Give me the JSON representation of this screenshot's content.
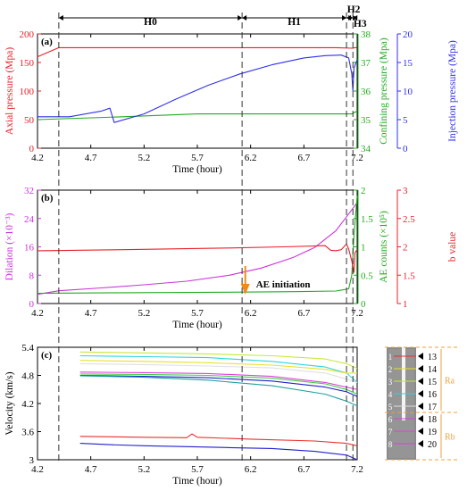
{
  "phases": [
    "H0",
    "H1",
    "H2",
    "H3"
  ],
  "colors": {
    "axial": "#e8202a",
    "confining": "#22aa22",
    "injection": "#3030e8",
    "dilation": "#cc33dd",
    "ae": "#22aa22",
    "bvalue": "#e8202a",
    "arrow": "#f28a1a",
    "sensor_dim": "#f0a040"
  },
  "chart_data": [
    {
      "panel": "(a)",
      "type": "line",
      "xlabel": "Time (hour)",
      "xlim": [
        4.2,
        7.2
      ],
      "xticks": [
        4.2,
        4.7,
        5.2,
        5.7,
        6.2,
        6.7,
        7.2
      ],
      "y_left": {
        "label": "Axial pressure (Mpa)",
        "lim": [
          0,
          200
        ],
        "ticks": [
          0,
          50,
          100,
          150,
          200
        ]
      },
      "y_right1": {
        "label": "Confining pressure (Mpa)",
        "lim": [
          34,
          38
        ],
        "ticks": [
          34,
          35,
          36,
          37,
          38
        ]
      },
      "y_right2": {
        "label": "Injection pressure (Mpa)",
        "lim": [
          0,
          20
        ],
        "ticks": [
          0,
          5,
          10,
          15,
          20
        ]
      },
      "series": [
        {
          "key": "axial",
          "axis": "left",
          "x": [
            4.2,
            4.4,
            4.5,
            7.0,
            7.16,
            7.18,
            7.2
          ],
          "y": [
            160,
            176,
            176,
            176,
            175,
            176,
            176
          ]
        },
        {
          "key": "confining",
          "axis": "right1",
          "x": [
            4.2,
            5.0,
            5.7,
            6.5,
            7.15,
            7.2
          ],
          "y": [
            35.0,
            35.1,
            35.2,
            35.2,
            35.2,
            35.3
          ]
        },
        {
          "key": "injection",
          "axis": "right2",
          "x": [
            4.2,
            4.5,
            4.8,
            4.88,
            4.92,
            5.2,
            5.5,
            5.8,
            6.1,
            6.4,
            6.7,
            6.9,
            7.05,
            7.12,
            7.15,
            7.16,
            7.17,
            7.2
          ],
          "y": [
            5.5,
            5.5,
            6.5,
            7.0,
            4.5,
            6.0,
            8.6,
            11.0,
            13.0,
            14.6,
            15.8,
            16.2,
            16.3,
            15.8,
            13.0,
            10.0,
            14.0,
            15.5
          ]
        }
      ]
    },
    {
      "panel": "(b)",
      "type": "line",
      "xlabel": "Time (hour)",
      "xlim": [
        4.2,
        7.2
      ],
      "xticks": [
        4.2,
        4.7,
        5.2,
        5.7,
        6.2,
        6.7,
        7.2
      ],
      "y_left": {
        "label": "Dilation  (×10⁻³)",
        "lim": [
          0,
          32
        ],
        "ticks": [
          0,
          8,
          16,
          24,
          32
        ]
      },
      "y_right1": {
        "label": "AE counts  (×10⁵)",
        "lim": [
          0,
          2
        ],
        "ticks": [
          0,
          0.5,
          1,
          1.5,
          2
        ]
      },
      "y_right2": {
        "label": "b value",
        "lim": [
          1,
          3
        ],
        "ticks": [
          1,
          1.5,
          2,
          2.5,
          3
        ]
      },
      "annotation": "AE initiation",
      "annotation_x": 6.15,
      "series": [
        {
          "key": "dilation",
          "axis": "left",
          "x": [
            4.2,
            4.4,
            4.8,
            5.2,
            5.6,
            6.0,
            6.3,
            6.6,
            6.8,
            7.0,
            7.1,
            7.2
          ],
          "y": [
            2.6,
            3.6,
            4.4,
            5.3,
            6.3,
            8.0,
            10.0,
            13.0,
            15.8,
            20.5,
            24.5,
            28.5
          ]
        },
        {
          "key": "ae",
          "axis": "right1",
          "x": [
            4.2,
            5.0,
            6.0,
            6.6,
            7.0,
            7.12,
            7.15,
            7.17,
            7.2
          ],
          "y": [
            0.18,
            0.19,
            0.2,
            0.21,
            0.22,
            0.26,
            0.5,
            1.2,
            1.9
          ]
        },
        {
          "key": "bvalue",
          "axis": "right2",
          "x": [
            4.2,
            5.0,
            6.0,
            6.5,
            6.9,
            6.95,
            7.0,
            7.05,
            7.1,
            7.12,
            7.15,
            7.17,
            7.18,
            7.2
          ],
          "y": [
            1.93,
            1.95,
            1.98,
            2.0,
            2.02,
            1.94,
            1.93,
            1.95,
            2.05,
            1.96,
            1.75,
            1.55,
            1.9,
            1.95
          ]
        }
      ]
    },
    {
      "panel": "(c)",
      "type": "line",
      "xlabel": "Time (hour)",
      "xlim": [
        4.2,
        7.2
      ],
      "xticks": [
        4.2,
        4.7,
        5.2,
        5.7,
        6.2,
        6.7,
        7.2
      ],
      "y_left": {
        "label": "Velocity (km/s)",
        "lim": [
          3,
          5.4
        ],
        "ticks": [
          3,
          3.6,
          4.2,
          4.8,
          5.4
        ]
      },
      "series": [
        {
          "color": "#c8e83a",
          "x": [
            4.6,
            5.2,
            5.8,
            6.4,
            6.9,
            7.1,
            7.2
          ],
          "y": [
            5.3,
            5.28,
            5.26,
            5.22,
            5.15,
            5.05,
            4.95
          ]
        },
        {
          "color": "#30d4e0",
          "x": [
            4.6,
            5.2,
            5.8,
            6.4,
            6.9,
            7.1,
            7.2
          ],
          "y": [
            5.22,
            5.2,
            5.18,
            5.1,
            4.98,
            4.85,
            4.65
          ]
        },
        {
          "color": "#e8e030",
          "x": [
            4.6,
            5.2,
            5.8,
            6.4,
            6.9,
            7.1,
            7.2
          ],
          "y": [
            5.12,
            5.1,
            5.07,
            5.02,
            4.93,
            4.85,
            4.85
          ]
        },
        {
          "color": "#e0e0e0",
          "x": [
            4.6,
            5.2,
            5.8,
            6.4,
            6.9,
            7.1,
            7.2
          ],
          "y": [
            5.05,
            5.03,
            5.0,
            4.96,
            4.85,
            4.72,
            4.65
          ]
        },
        {
          "color": "#e040e0",
          "x": [
            4.6,
            5.2,
            5.8,
            6.4,
            6.9,
            7.1,
            7.2
          ],
          "y": [
            4.87,
            4.86,
            4.84,
            4.78,
            4.65,
            4.55,
            4.5
          ]
        },
        {
          "color": "#40d040",
          "x": [
            4.6,
            5.2,
            5.8,
            6.4,
            6.9,
            7.1,
            7.2
          ],
          "y": [
            4.83,
            4.82,
            4.8,
            4.74,
            4.62,
            4.5,
            4.4
          ]
        },
        {
          "color": "#2020d0",
          "x": [
            4.6,
            5.2,
            5.8,
            6.4,
            6.9,
            7.1,
            7.2
          ],
          "y": [
            4.8,
            4.78,
            4.75,
            4.68,
            4.55,
            4.45,
            4.35
          ]
        },
        {
          "color": "#20a0a0",
          "x": [
            4.6,
            5.2,
            5.8,
            6.4,
            6.9,
            7.1,
            7.2
          ],
          "y": [
            4.79,
            4.76,
            4.7,
            4.58,
            4.4,
            4.25,
            4.15
          ]
        },
        {
          "color": "#e83030",
          "x": [
            4.6,
            5.2,
            5.6,
            5.65,
            5.7,
            6.2,
            6.8,
            7.1,
            7.2
          ],
          "y": [
            3.5,
            3.48,
            3.47,
            3.55,
            3.48,
            3.44,
            3.4,
            3.35,
            3.3
          ]
        },
        {
          "color": "#2020d0",
          "x": [
            4.6,
            4.9,
            5.2,
            5.6,
            6.0,
            6.4,
            6.8,
            7.1,
            7.2
          ],
          "y": [
            3.35,
            3.32,
            3.3,
            3.28,
            3.26,
            3.24,
            3.18,
            3.1,
            3.0
          ]
        }
      ]
    }
  ],
  "sensors": {
    "left": [
      "1",
      "2",
      "3",
      "4",
      "5",
      "6",
      "7",
      "8"
    ],
    "right": [
      "13",
      "14",
      "15",
      "16",
      "17",
      "18",
      "19",
      "20"
    ],
    "colors": [
      "#e83030",
      "#e8e030",
      "#c8e83a",
      "#30d4e0",
      "#e0e0e0",
      "#e040e0",
      "#e040e0",
      "#e040e0"
    ],
    "zones": [
      "Ra",
      "Rb"
    ]
  }
}
